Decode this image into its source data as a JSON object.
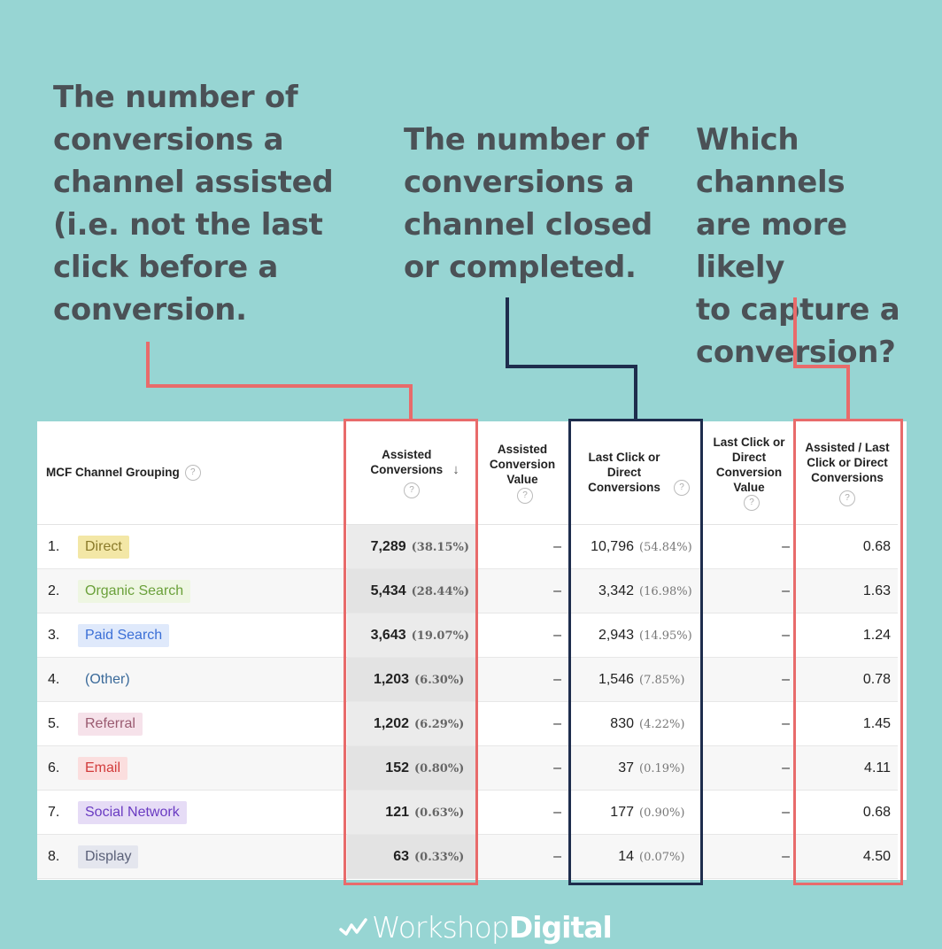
{
  "callouts": [
    {
      "text": "The number of\nconversions a\nchannel assisted\n(i.e. not the last\nclick before a\nconversion."
    },
    {
      "text": "The number of\nconversions a\nchannel closed\nor completed."
    },
    {
      "text": "Which channels\nare more likely\nto capture a\nconversion?"
    }
  ],
  "table": {
    "headers": {
      "channel": "MCF Channel Grouping",
      "assisted_conversions": "Assisted Conversions",
      "assisted_value": "Assisted Conversion Value",
      "last_click_conversions": "Last Click or Direct Conversions",
      "last_click_value": "Last Click or Direct Conversion Value",
      "ratio": "Assisted / Last Click or Direct Conversions"
    },
    "help_glyph": "?",
    "sort_glyph": "↓",
    "rows": [
      {
        "rank": "1.",
        "channel": "Direct",
        "chip_bg": "#f3e7a6",
        "chip_fg": "#8a7a2a",
        "assisted": "7,289",
        "assisted_pct": "(38.15%)",
        "assisted_value": "–",
        "last_click": "10,796",
        "last_click_pct": "(54.84%)",
        "last_click_value": "–",
        "ratio": "0.68"
      },
      {
        "rank": "2.",
        "channel": "Organic Search",
        "chip_bg": "#eef6e2",
        "chip_fg": "#6aa03a",
        "assisted": "5,434",
        "assisted_pct": "(28.44%)",
        "assisted_value": "–",
        "last_click": "3,342",
        "last_click_pct": "(16.98%)",
        "last_click_value": "–",
        "ratio": "1.63"
      },
      {
        "rank": "3.",
        "channel": "Paid Search",
        "chip_bg": "#dfe9fb",
        "chip_fg": "#3b6fd6",
        "assisted": "3,643",
        "assisted_pct": "(19.07%)",
        "assisted_value": "–",
        "last_click": "2,943",
        "last_click_pct": "(14.95%)",
        "last_click_value": "–",
        "ratio": "1.24"
      },
      {
        "rank": "4.",
        "channel": "(Other)",
        "chip_bg": "transparent",
        "chip_fg": "#3a6a9a",
        "assisted": "1,203",
        "assisted_pct": "(6.30%)",
        "assisted_value": "–",
        "last_click": "1,546",
        "last_click_pct": "(7.85%)",
        "last_click_value": "–",
        "ratio": "0.78"
      },
      {
        "rank": "5.",
        "channel": "Referral",
        "chip_bg": "#f6e2ea",
        "chip_fg": "#9a5a70",
        "assisted": "1,202",
        "assisted_pct": "(6.29%)",
        "assisted_value": "–",
        "last_click": "830",
        "last_click_pct": "(4.22%)",
        "last_click_value": "–",
        "ratio": "1.45"
      },
      {
        "rank": "6.",
        "channel": "Email",
        "chip_bg": "#fbdede",
        "chip_fg": "#d23b3b",
        "assisted": "152",
        "assisted_pct": "(0.80%)",
        "assisted_value": "–",
        "last_click": "37",
        "last_click_pct": "(0.19%)",
        "last_click_value": "–",
        "ratio": "4.11"
      },
      {
        "rank": "7.",
        "channel": "Social Network",
        "chip_bg": "#e6dcf6",
        "chip_fg": "#6a3bc2",
        "assisted": "121",
        "assisted_pct": "(0.63%)",
        "assisted_value": "–",
        "last_click": "177",
        "last_click_pct": "(0.90%)",
        "last_click_value": "–",
        "ratio": "0.68"
      },
      {
        "rank": "8.",
        "channel": "Display",
        "chip_bg": "#e4e6ee",
        "chip_fg": "#5a6078",
        "assisted": "63",
        "assisted_pct": "(0.33%)",
        "assisted_value": "–",
        "last_click": "14",
        "last_click_pct": "(0.07%)",
        "last_click_value": "–",
        "ratio": "4.50"
      }
    ]
  },
  "colors": {
    "background": "#97d5d3",
    "accent_red": "#e86b6b",
    "accent_navy": "#1e2d4d",
    "callout_text": "#4b5156"
  },
  "brand": {
    "name_light": "Workshop",
    "name_bold": "Digital",
    "icon": "zigzag-check-icon"
  }
}
